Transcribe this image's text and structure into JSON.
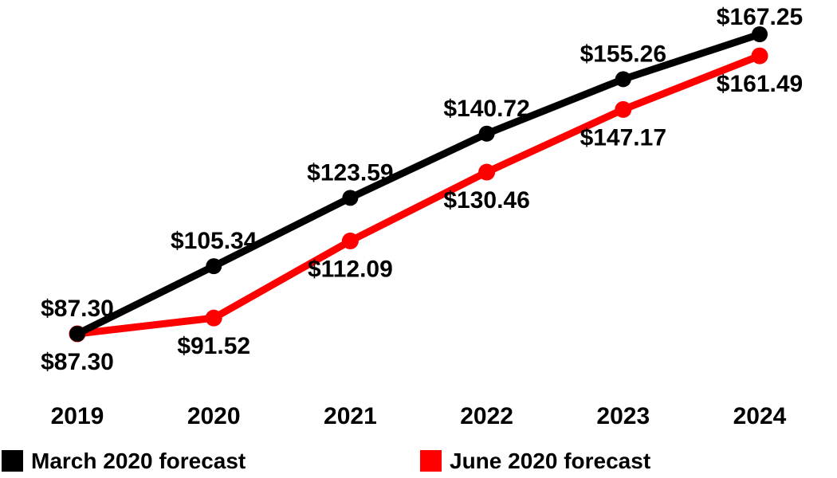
{
  "chart_data": {
    "type": "line",
    "categories": [
      "2019",
      "2020",
      "2021",
      "2022",
      "2023",
      "2024"
    ],
    "series": [
      {
        "name": "March 2020 forecast",
        "color": "#000000",
        "values": [
          87.3,
          105.34,
          123.59,
          140.72,
          155.26,
          167.25
        ],
        "label_position": "above"
      },
      {
        "name": "June 2020 forecast",
        "color": "#ff0000",
        "values": [
          87.3,
          91.52,
          112.09,
          130.46,
          147.17,
          161.49
        ],
        "label_position": "below"
      }
    ],
    "title": "",
    "xlabel": "",
    "ylabel": "",
    "value_prefix": "$",
    "value_decimals": 2,
    "ylim": [
      87.3,
      167.25
    ],
    "grid": false,
    "axes_visible": false,
    "legend_position": "bottom",
    "background": "#ffffff",
    "label_color": "#000000"
  }
}
